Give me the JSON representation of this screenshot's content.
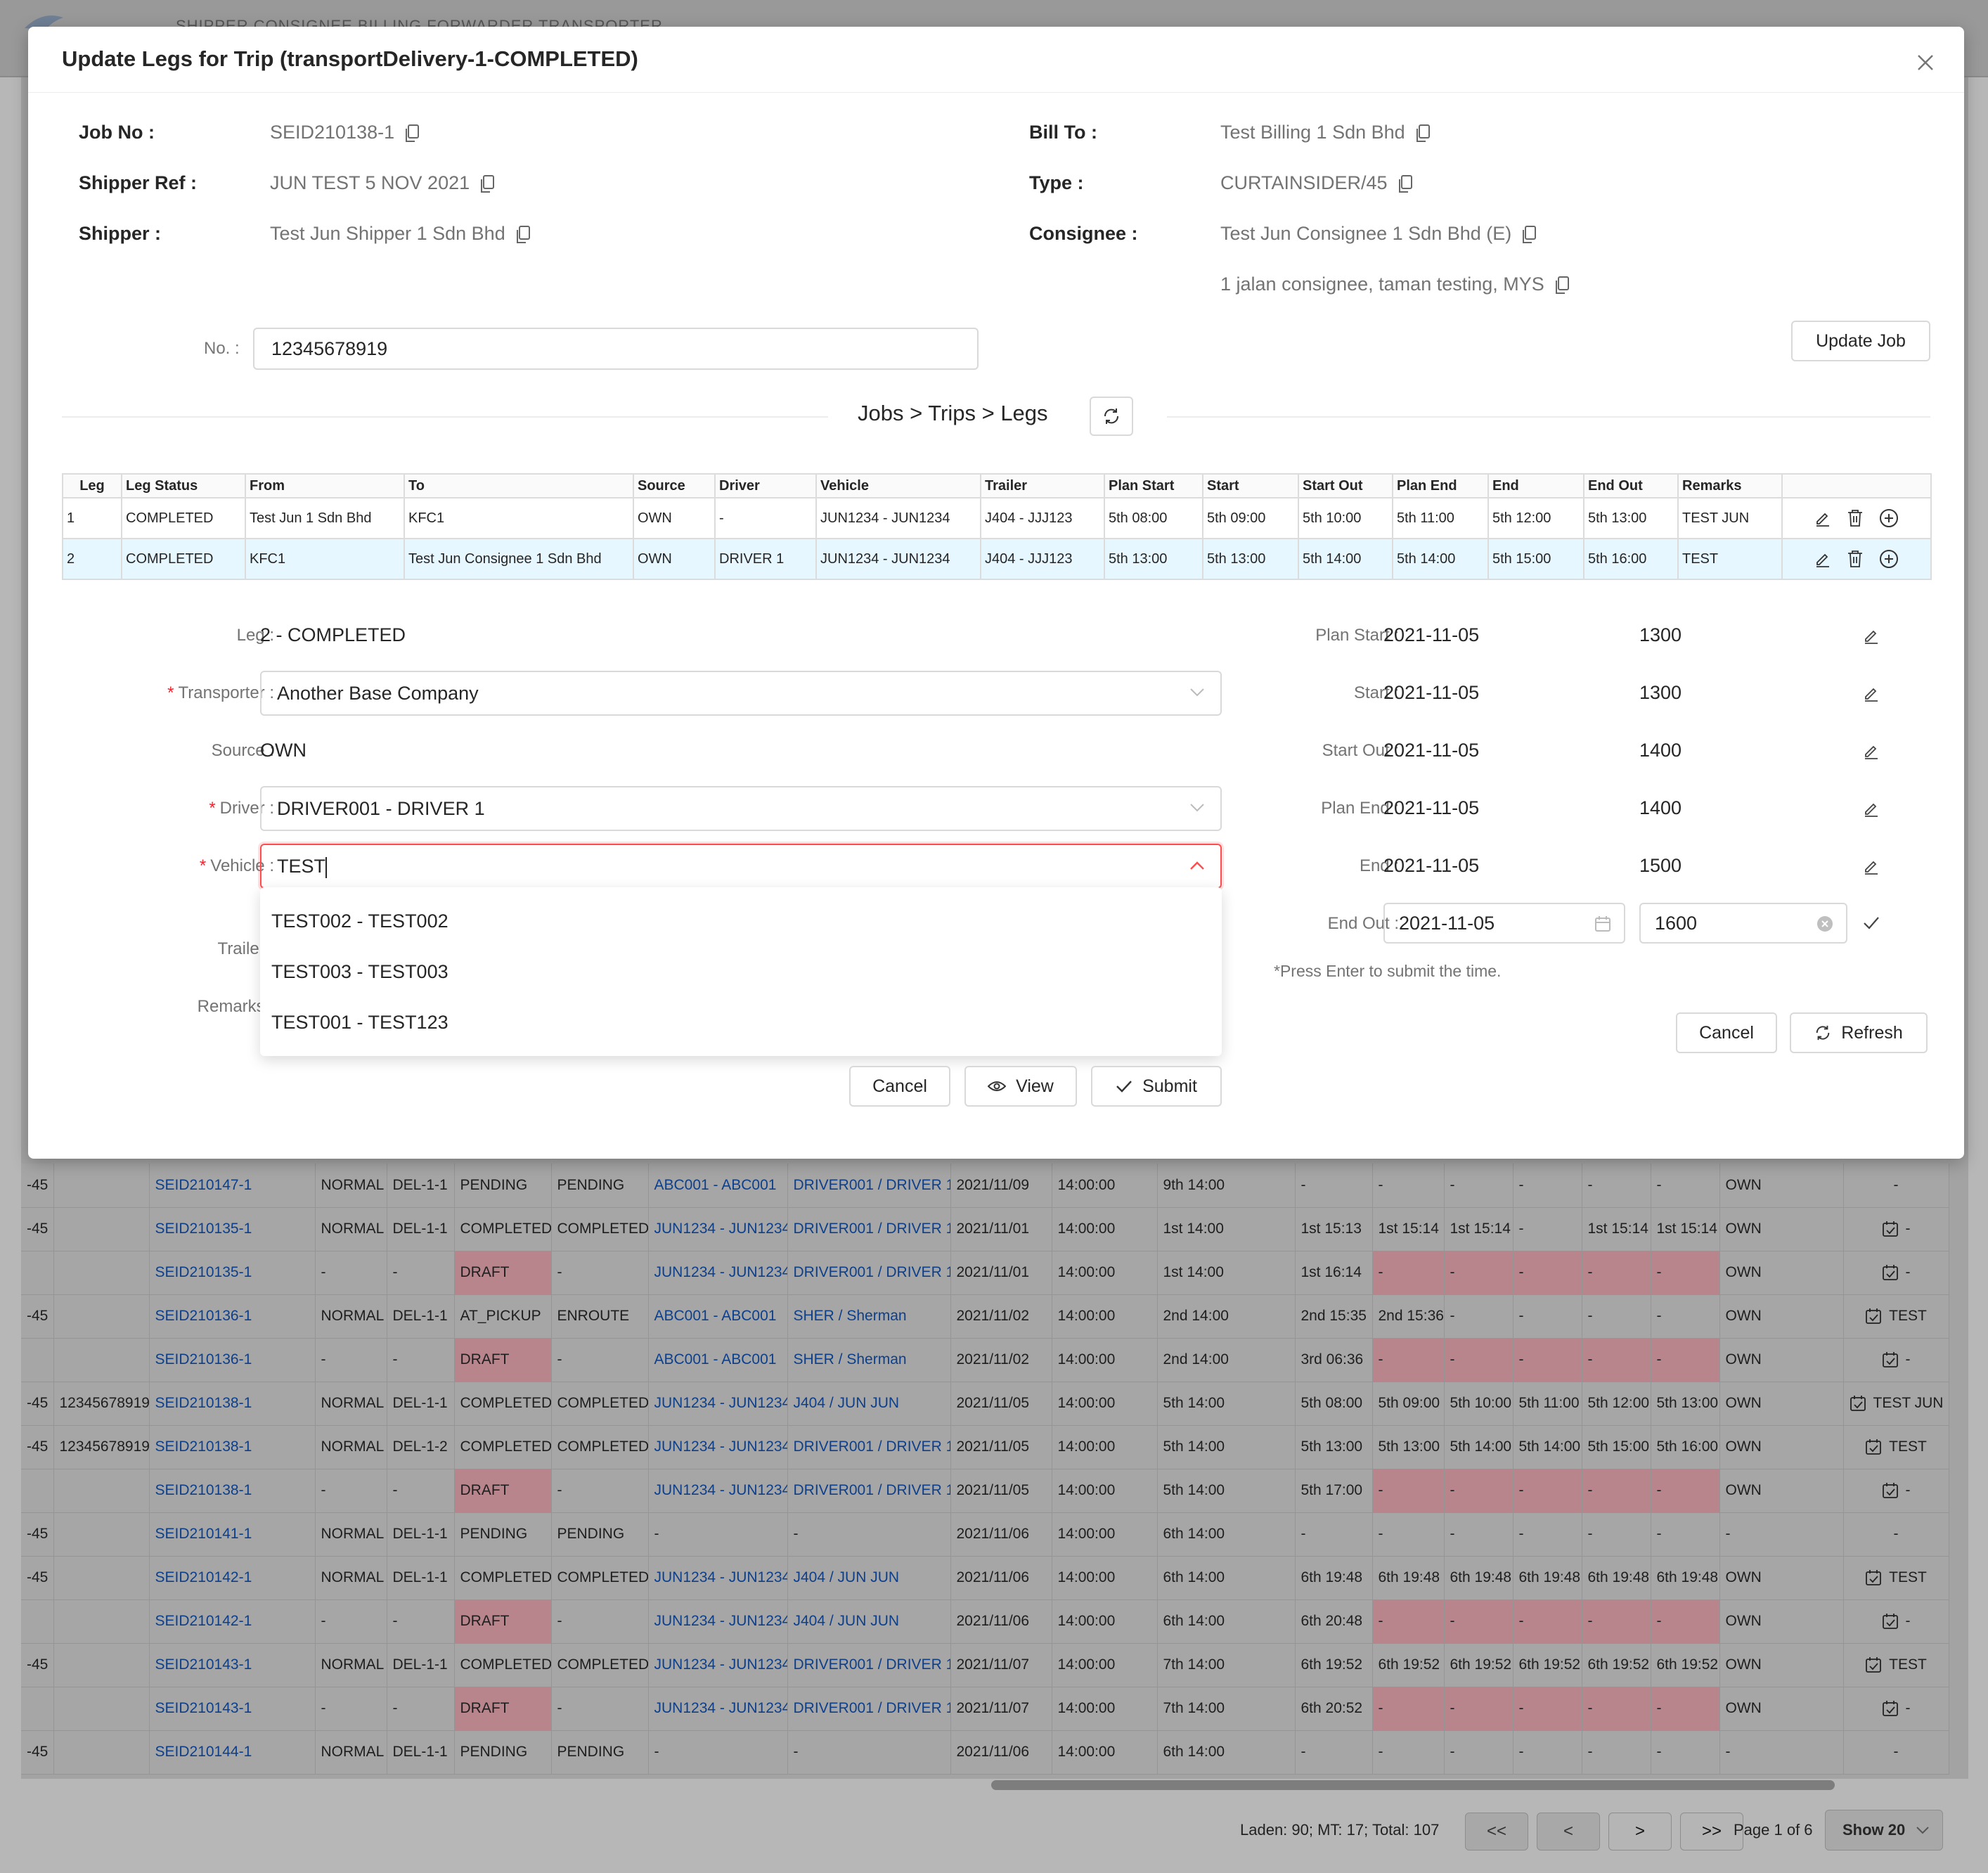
{
  "background": {
    "nav_text": "SHIPPER CONSIGNEE BILLING FORWARDER TRANSPORTER",
    "rows": [
      {
        "c0": "-45",
        "c1": "",
        "job": "SEID210147-1",
        "c3": "NORMAL",
        "c4": "DEL-1-1",
        "c5": "PENDING",
        "c6": "PENDING",
        "veh": "ABC001 - ABC001",
        "drv": "DRIVER001 / DRIVER 1",
        "date": "2021/11/09",
        "time": "14:00:00",
        "ps": "9th 14:00",
        "t1": "-",
        "t2": "-",
        "t3": "-",
        "t4": "-",
        "t5": "-",
        "t6": "-",
        "src": "OWN",
        "rem": "-",
        "draft": false
      },
      {
        "c0": "-45",
        "c1": "",
        "job": "SEID210135-1",
        "c3": "NORMAL",
        "c4": "DEL-1-1",
        "c5": "COMPLETED",
        "c6": "COMPLETED",
        "veh": "JUN1234 - JUN1234",
        "drv": "DRIVER001 / DRIVER 1",
        "date": "2021/11/01",
        "time": "14:00:00",
        "ps": "1st 14:00",
        "t1": "1st 15:13",
        "t2": "1st 15:14",
        "t3": "1st 15:14",
        "t4": "-",
        "t5": "1st 15:14",
        "t6": "1st 15:14",
        "src": "OWN",
        "rem": "-",
        "draft": false
      },
      {
        "c0": "",
        "c1": "",
        "job": "SEID210135-1",
        "c3": "-",
        "c4": "-",
        "c5": "DRAFT",
        "c6": "-",
        "veh": "JUN1234 - JUN1234",
        "drv": "DRIVER001 / DRIVER 1",
        "date": "2021/11/01",
        "time": "14:00:00",
        "ps": "1st 14:00",
        "t1": "1st 16:14",
        "t2": "-",
        "t3": "-",
        "t4": "-",
        "t5": "-",
        "t6": "-",
        "src": "OWN",
        "rem": "-",
        "draft": true
      },
      {
        "c0": "-45",
        "c1": "",
        "job": "SEID210136-1",
        "c3": "NORMAL",
        "c4": "DEL-1-1",
        "c5": "AT_PICKUP",
        "c6": "ENROUTE",
        "veh": "ABC001 - ABC001",
        "drv": "SHER / Sherman",
        "date": "2021/11/02",
        "time": "14:00:00",
        "ps": "2nd 14:00",
        "t1": "2nd 15:35",
        "t2": "2nd 15:36",
        "t3": "-",
        "t4": "-",
        "t5": "-",
        "t6": "-",
        "src": "OWN",
        "rem": "TEST",
        "draft": false
      },
      {
        "c0": "",
        "c1": "",
        "job": "SEID210136-1",
        "c3": "-",
        "c4": "-",
        "c5": "DRAFT",
        "c6": "-",
        "veh": "ABC001 - ABC001",
        "drv": "SHER / Sherman",
        "date": "2021/11/02",
        "time": "14:00:00",
        "ps": "2nd 14:00",
        "t1": "3rd 06:36",
        "t2": "-",
        "t3": "-",
        "t4": "-",
        "t5": "-",
        "t6": "-",
        "src": "OWN",
        "rem": "-",
        "draft": true
      },
      {
        "c0": "-45",
        "c1": "12345678919",
        "job": "SEID210138-1",
        "c3": "NORMAL",
        "c4": "DEL-1-1",
        "c5": "COMPLETED",
        "c6": "COMPLETED",
        "veh": "JUN1234 - JUN1234",
        "drv": "J404 / JUN JUN",
        "date": "2021/11/05",
        "time": "14:00:00",
        "ps": "5th 14:00",
        "t1": "5th 08:00",
        "t2": "5th 09:00",
        "t3": "5th 10:00",
        "t4": "5th 11:00",
        "t5": "5th 12:00",
        "t6": "5th 13:00",
        "src": "OWN",
        "rem": "TEST JUN",
        "draft": false
      },
      {
        "c0": "-45",
        "c1": "12345678919",
        "job": "SEID210138-1",
        "c3": "NORMAL",
        "c4": "DEL-1-2",
        "c5": "COMPLETED",
        "c6": "COMPLETED",
        "veh": "JUN1234 - JUN1234",
        "drv": "DRIVER001 / DRIVER 1",
        "date": "2021/11/05",
        "time": "14:00:00",
        "ps": "5th 14:00",
        "t1": "5th 13:00",
        "t2": "5th 13:00",
        "t3": "5th 14:00",
        "t4": "5th 14:00",
        "t5": "5th 15:00",
        "t6": "5th 16:00",
        "src": "OWN",
        "rem": "TEST",
        "draft": false
      },
      {
        "c0": "",
        "c1": "",
        "job": "SEID210138-1",
        "c3": "-",
        "c4": "-",
        "c5": "DRAFT",
        "c6": "-",
        "veh": "JUN1234 - JUN1234",
        "drv": "DRIVER001 / DRIVER 1",
        "date": "2021/11/05",
        "time": "14:00:00",
        "ps": "5th 14:00",
        "t1": "5th 17:00",
        "t2": "-",
        "t3": "-",
        "t4": "-",
        "t5": "-",
        "t6": "-",
        "src": "OWN",
        "rem": "-",
        "draft": true
      },
      {
        "c0": "-45",
        "c1": "",
        "job": "SEID210141-1",
        "c3": "NORMAL",
        "c4": "DEL-1-1",
        "c5": "PENDING",
        "c6": "PENDING",
        "veh": "-",
        "drv": "-",
        "date": "2021/11/06",
        "time": "14:00:00",
        "ps": "6th 14:00",
        "t1": "-",
        "t2": "-",
        "t3": "-",
        "t4": "-",
        "t5": "-",
        "t6": "-",
        "src": "-",
        "rem": "-",
        "draft": false
      },
      {
        "c0": "-45",
        "c1": "",
        "job": "SEID210142-1",
        "c3": "NORMAL",
        "c4": "DEL-1-1",
        "c5": "COMPLETED",
        "c6": "COMPLETED",
        "veh": "JUN1234 - JUN1234",
        "drv": "J404 / JUN JUN",
        "date": "2021/11/06",
        "time": "14:00:00",
        "ps": "6th 14:00",
        "t1": "6th 19:48",
        "t2": "6th 19:48",
        "t3": "6th 19:48",
        "t4": "6th 19:48",
        "t5": "6th 19:48",
        "t6": "6th 19:48",
        "src": "OWN",
        "rem": "TEST",
        "draft": false
      },
      {
        "c0": "",
        "c1": "",
        "job": "SEID210142-1",
        "c3": "-",
        "c4": "-",
        "c5": "DRAFT",
        "c6": "-",
        "veh": "JUN1234 - JUN1234",
        "drv": "J404 / JUN JUN",
        "date": "2021/11/06",
        "time": "14:00:00",
        "ps": "6th 14:00",
        "t1": "6th 20:48",
        "t2": "-",
        "t3": "-",
        "t4": "-",
        "t5": "-",
        "t6": "-",
        "src": "OWN",
        "rem": "-",
        "draft": true
      },
      {
        "c0": "-45",
        "c1": "",
        "job": "SEID210143-1",
        "c3": "NORMAL",
        "c4": "DEL-1-1",
        "c5": "COMPLETED",
        "c6": "COMPLETED",
        "veh": "JUN1234 - JUN1234",
        "drv": "DRIVER001 / DRIVER 1",
        "date": "2021/11/07",
        "time": "14:00:00",
        "ps": "7th 14:00",
        "t1": "6th 19:52",
        "t2": "6th 19:52",
        "t3": "6th 19:52",
        "t4": "6th 19:52",
        "t5": "6th 19:52",
        "t6": "6th 19:52",
        "src": "OWN",
        "rem": "TEST",
        "draft": false
      },
      {
        "c0": "",
        "c1": "",
        "job": "SEID210143-1",
        "c3": "-",
        "c4": "-",
        "c5": "DRAFT",
        "c6": "-",
        "veh": "JUN1234 - JUN1234",
        "drv": "DRIVER001 / DRIVER 1",
        "date": "2021/11/07",
        "time": "14:00:00",
        "ps": "7th 14:00",
        "t1": "6th 20:52",
        "t2": "-",
        "t3": "-",
        "t4": "-",
        "t5": "-",
        "t6": "-",
        "src": "OWN",
        "rem": "-",
        "draft": true
      },
      {
        "c0": "-45",
        "c1": "",
        "job": "SEID210144-1",
        "c3": "NORMAL",
        "c4": "DEL-1-1",
        "c5": "PENDING",
        "c6": "PENDING",
        "veh": "-",
        "drv": "-",
        "date": "2021/11/06",
        "time": "14:00:00",
        "ps": "6th 14:00",
        "t1": "-",
        "t2": "-",
        "t3": "-",
        "t4": "-",
        "t5": "-",
        "t6": "-",
        "src": "-",
        "rem": "-",
        "draft": false
      }
    ],
    "footer": {
      "summary": "Laden: 90; MT: 17; Total: 107",
      "first": "<<",
      "prev": "<",
      "next": ">",
      "last": ">>",
      "page_info": "Page 1 of 6",
      "show": "Show 20"
    }
  },
  "modal": {
    "title": "Update Legs for Trip (transportDelivery-1-COMPLETED)",
    "info": {
      "job_no_label": "Job No :",
      "job_no": "SEID210138-1",
      "shipper_ref_label": "Shipper Ref :",
      "shipper_ref": "JUN TEST 5 NOV 2021",
      "shipper_label": "Shipper :",
      "shipper": "Test Jun Shipper 1 Sdn Bhd",
      "bill_to_label": "Bill To :",
      "bill_to": "Test Billing 1 Sdn Bhd",
      "type_label": "Type :",
      "type": "CURTAINSIDER/45",
      "consignee_label": "Consignee :",
      "consignee": "Test Jun Consignee 1 Sdn Bhd (E)",
      "consignee_address": "1 jalan consignee, taman testing, MYS"
    },
    "no_label": "No. :",
    "no_value": "12345678919",
    "update_job": "Update Job",
    "section_title": "Jobs > Trips > Legs",
    "legs_headers": [
      "Leg",
      "Leg Status",
      "From",
      "To",
      "Source",
      "Driver",
      "Vehicle",
      "Trailer",
      "Plan Start",
      "Start",
      "Start Out",
      "Plan End",
      "End",
      "End Out",
      "Remarks",
      ""
    ],
    "legs": [
      {
        "leg": "1",
        "status": "COMPLETED",
        "from": "Test Jun 1 Sdn Bhd",
        "to": "KFC1",
        "source": "OWN",
        "driver": "-",
        "vehicle": "JUN1234 - JUN1234",
        "trailer": "J404 - JJJ123",
        "plan_start": "5th 08:00",
        "start": "5th 09:00",
        "start_out": "5th 10:00",
        "plan_end": "5th 11:00",
        "end": "5th 12:00",
        "end_out": "5th 13:00",
        "remarks": "TEST JUN"
      },
      {
        "leg": "2",
        "status": "COMPLETED",
        "from": "KFC1",
        "to": "Test Jun Consignee 1 Sdn Bhd",
        "source": "OWN",
        "driver": "DRIVER 1",
        "vehicle": "JUN1234 - JUN1234",
        "trailer": "J404 - JJJ123",
        "plan_start": "5th 13:00",
        "start": "5th 13:00",
        "start_out": "5th 14:00",
        "plan_end": "5th 14:00",
        "end": "5th 15:00",
        "end_out": "5th 16:00",
        "remarks": "TEST"
      }
    ],
    "form": {
      "leg_label": "Leg :",
      "leg_value": "2 - COMPLETED",
      "transporter_label": "Transporter :",
      "transporter_value": "Another Base Company",
      "source_label": "Source :",
      "source_value": "OWN",
      "driver_label": "Driver :",
      "driver_value": "DRIVER001 - DRIVER 1",
      "vehicle_label": "Vehicle :",
      "vehicle_value": "TEST",
      "trailer_label": "Trailer :",
      "remarks_label": "Remarks :",
      "vehicle_options": [
        "TEST002 - TEST002",
        "TEST003 - TEST003",
        "TEST001 - TEST123"
      ],
      "cancel": "Cancel",
      "view": "View",
      "submit": "Submit"
    },
    "times": {
      "plan_start_label": "Plan Start :",
      "plan_start_date": "2021-11-05",
      "plan_start_time": "1300",
      "start_label": "Start :",
      "start_date": "2021-11-05",
      "start_time": "1300",
      "start_out_label": "Start Out :",
      "start_out_date": "2021-11-05",
      "start_out_time": "1400",
      "plan_end_label": "Plan End :",
      "plan_end_date": "2021-11-05",
      "plan_end_time": "1400",
      "end_label": "End :",
      "end_date": "2021-11-05",
      "end_time": "1500",
      "end_out_label": "End Out :",
      "end_out_date": "2021-11-05",
      "end_out_time": "1600",
      "note": "*Press Enter to submit the time.",
      "cancel": "Cancel",
      "refresh": "Refresh"
    }
  }
}
